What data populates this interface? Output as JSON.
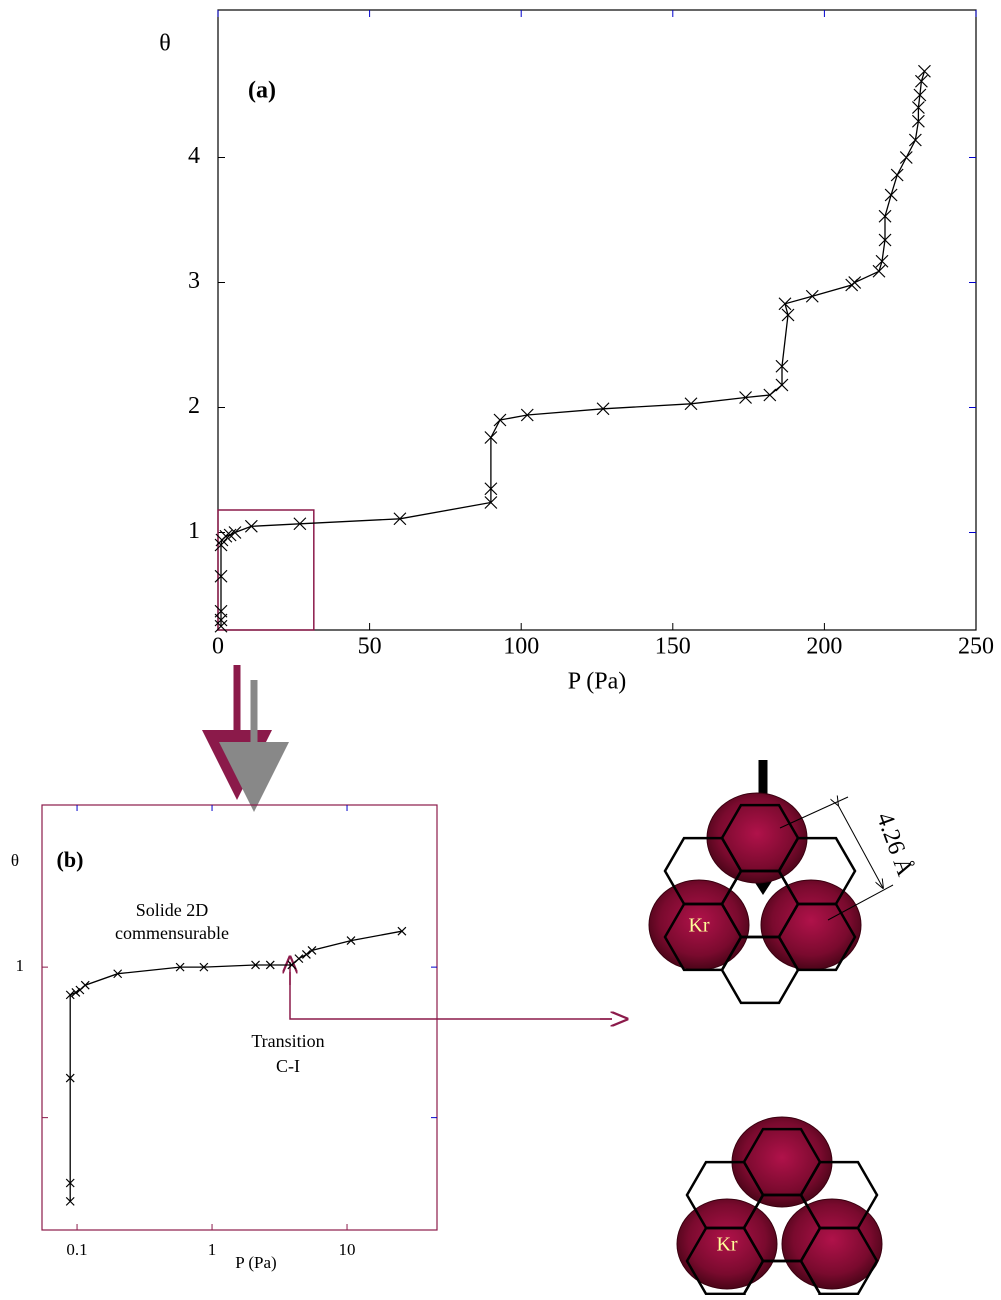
{
  "chart_data": [
    {
      "type": "line",
      "panel_label": "(a)",
      "y_label": "θ",
      "x_label": "P (Pa)",
      "color": "#000000",
      "marker": "x",
      "axis_color": "#000000",
      "x": [
        1,
        1,
        1,
        1,
        1,
        1.3,
        2.6,
        4,
        5.6,
        11,
        27,
        60,
        90,
        90,
        90,
        93,
        102,
        127,
        156,
        174,
        182,
        186,
        186,
        188,
        187,
        196,
        209,
        210,
        218,
        219,
        220,
        220,
        222,
        224,
        227,
        230,
        231,
        231,
        231.5,
        232,
        233
      ],
      "values": [
        0.25,
        0.3,
        0.37,
        0.65,
        0.9,
        0.94,
        0.97,
        0.98,
        1.0,
        1.05,
        1.07,
        1.11,
        1.24,
        1.35,
        1.76,
        1.9,
        1.94,
        1.99,
        2.03,
        2.08,
        2.1,
        2.18,
        2.33,
        2.74,
        2.83,
        2.89,
        2.98,
        3.0,
        3.09,
        3.17,
        3.34,
        3.53,
        3.7,
        3.86,
        4.0,
        4.14,
        4.29,
        4.4,
        4.5,
        4.61,
        4.69
      ],
      "xlim": [
        0,
        250
      ],
      "ylim": [
        0.22,
        5.18
      ],
      "xticks": [
        0,
        50,
        100,
        150,
        200,
        250
      ],
      "yticks": [
        1,
        2,
        3,
        4
      ],
      "highlight": {
        "x": [
          0,
          31.6
        ],
        "y": [
          0.22,
          1.18
        ],
        "color": "#8b1a4a"
      }
    },
    {
      "type": "line",
      "panel_label": "(b)",
      "y_label": "θ",
      "x_label": "P (Pa)",
      "color": "#000000",
      "marker": "x",
      "axis_color": "#8b1a4a",
      "log_x": true,
      "log_y": true,
      "x": [
        0.089,
        0.089,
        0.089,
        0.089,
        0.098,
        0.105,
        0.115,
        0.2,
        0.58,
        0.87,
        2.1,
        2.7,
        3.9,
        4.4,
        5.0,
        5.5,
        10.7,
        25.5
      ],
      "values": [
        0.34,
        0.37,
        0.6,
        0.88,
        0.89,
        0.9,
        0.92,
        0.97,
        1.0,
        1.0,
        1.01,
        1.01,
        1.01,
        1.04,
        1.06,
        1.08,
        1.13,
        1.18
      ],
      "xlim": [
        0.055,
        46.4
      ],
      "ylim": [
        0.298,
        2.11
      ],
      "xticks": [
        0.1,
        1,
        10
      ],
      "yticks": [
        1
      ],
      "minor_yticks": [
        0.5
      ],
      "annotations": [
        "Solide 2D",
        "commensurable",
        "Transition",
        "C-I"
      ]
    }
  ],
  "diagram": {
    "distance_label": "4.26 Å",
    "atom_labels": [
      "Kr",
      "Kr"
    ]
  }
}
